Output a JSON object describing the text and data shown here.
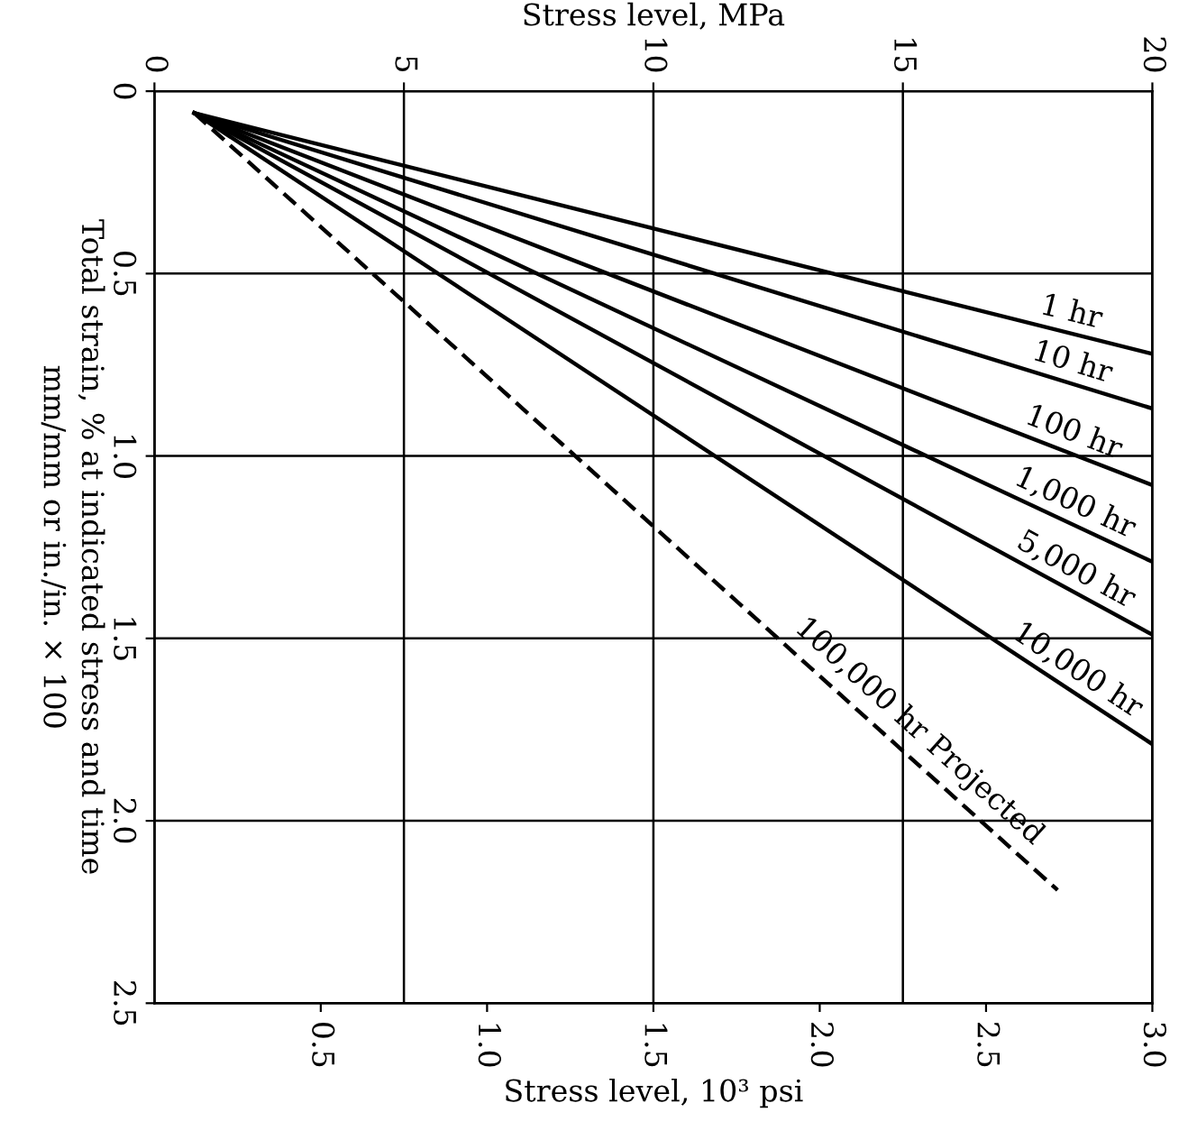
{
  "chart_data": {
    "type": "line",
    "xlabel": "Stress level, 10³ psi",
    "x2label": "Stress level, MPa",
    "ylabel": "Total strain, % at indicated stress and time\nmm/mm or in./in. × 100",
    "xlim": [
      0,
      20
    ],
    "xticks": [
      0,
      5,
      10,
      15,
      20
    ],
    "x2lim": [
      0,
      3.0
    ],
    "x2ticks": [
      0.5,
      {
        "value": 1.0,
        "label": "1.0"
      },
      1.5,
      {
        "value": 2.0,
        "label": "2.0"
      },
      2.5,
      {
        "value": 3.0,
        "label": "3.0"
      }
    ],
    "ylim": [
      2.5,
      0
    ],
    "yticks": [
      0,
      0.5,
      {
        "value": 1.0,
        "label": "1.0"
      },
      1.5,
      {
        "value": 2.0,
        "label": "2.0"
      },
      2.5
    ],
    "grid": true,
    "legend": false,
    "marker": "none",
    "series": [
      {
        "name": "1 hr",
        "color": "#000000",
        "x": [
          0.8,
          20
        ],
        "values": [
          0.06,
          0.72
        ]
      },
      {
        "name": "10 hr",
        "color": "#000000",
        "x": [
          0.8,
          20
        ],
        "values": [
          0.06,
          0.87
        ]
      },
      {
        "name": "100 hr",
        "color": "#000000",
        "x": [
          0.8,
          20
        ],
        "values": [
          0.06,
          1.08
        ]
      },
      {
        "name": "1,000 hr",
        "color": "#000000",
        "x": [
          0.8,
          20
        ],
        "values": [
          0.06,
          1.29
        ]
      },
      {
        "name": "5,000 hr",
        "color": "#000000",
        "x": [
          0.8,
          20
        ],
        "values": [
          0.06,
          1.49
        ]
      },
      {
        "name": "10,000 hr",
        "color": "#000000",
        "x": [
          0.8,
          20
        ],
        "values": [
          0.06,
          1.79
        ]
      },
      {
        "name": "100,000 hr Projected",
        "color": "#000000",
        "x": [
          0.8,
          18.1
        ],
        "values": [
          0.06,
          2.19
        ],
        "line_style": "dashed"
      }
    ]
  }
}
